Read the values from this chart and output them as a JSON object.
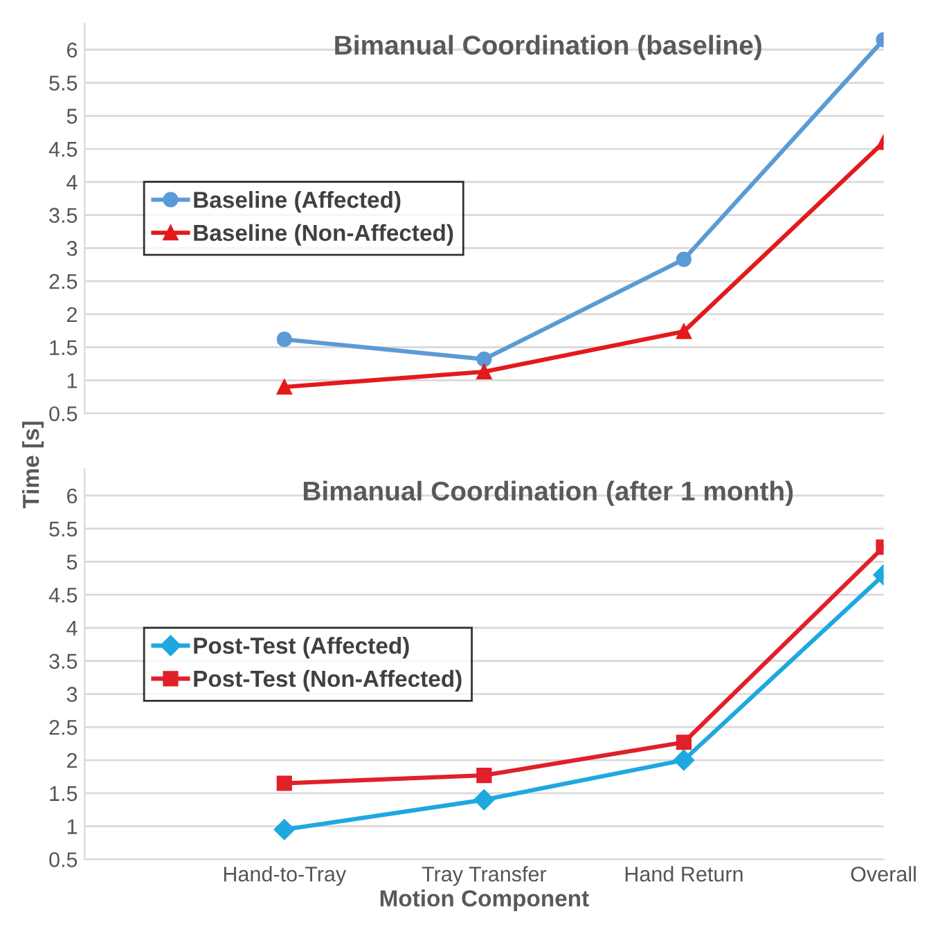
{
  "chart_data": [
    {
      "type": "line",
      "title": "Bimanual Coordination (baseline)",
      "categories": [
        null,
        null,
        null,
        null,
        null
      ],
      "series": [
        {
          "name": "Baseline (Affected)",
          "color": "#5b9bd5",
          "marker": "circle",
          "values": [
            null,
            1.62,
            1.32,
            2.83,
            6.15
          ]
        },
        {
          "name": "Baseline (Non-Affected)",
          "color": "#e31a1c",
          "marker": "triangle",
          "values": [
            null,
            0.9,
            1.13,
            1.74,
            4.6
          ]
        }
      ],
      "ylim": [
        0.5,
        6.4
      ],
      "yticks": [
        0.5,
        1,
        1.5,
        2,
        2.5,
        3,
        3.5,
        4,
        4.5,
        5,
        5.5,
        6
      ],
      "grid": "y",
      "legend": "left",
      "tick_labels": "y",
      "line_style": "solid"
    },
    {
      "type": "line",
      "title": "Bimanual Coordination (after 1 month)",
      "xlabel": "Motion Component",
      "ylabel": "Time [s]",
      "categories": [
        null,
        "Hand-to-Tray",
        "Tray Transfer",
        "Hand Return",
        "Overall"
      ],
      "series": [
        {
          "name": "Post-Test (Affected)",
          "color": "#1fa8e0",
          "marker": "diamond",
          "values": [
            null,
            0.95,
            1.4,
            2.0,
            4.8
          ]
        },
        {
          "name": "Post-Test (Non-Affected)",
          "color": "#e0202a",
          "marker": "square",
          "values": [
            null,
            1.65,
            1.77,
            2.27,
            5.22
          ]
        }
      ],
      "ylim": [
        0.5,
        6.4
      ],
      "yticks": [
        0.5,
        1,
        1.5,
        2,
        2.5,
        3,
        3.5,
        4,
        4.5,
        5,
        5.5,
        6
      ],
      "grid": "y",
      "legend": "left",
      "line_style": "solid"
    }
  ]
}
